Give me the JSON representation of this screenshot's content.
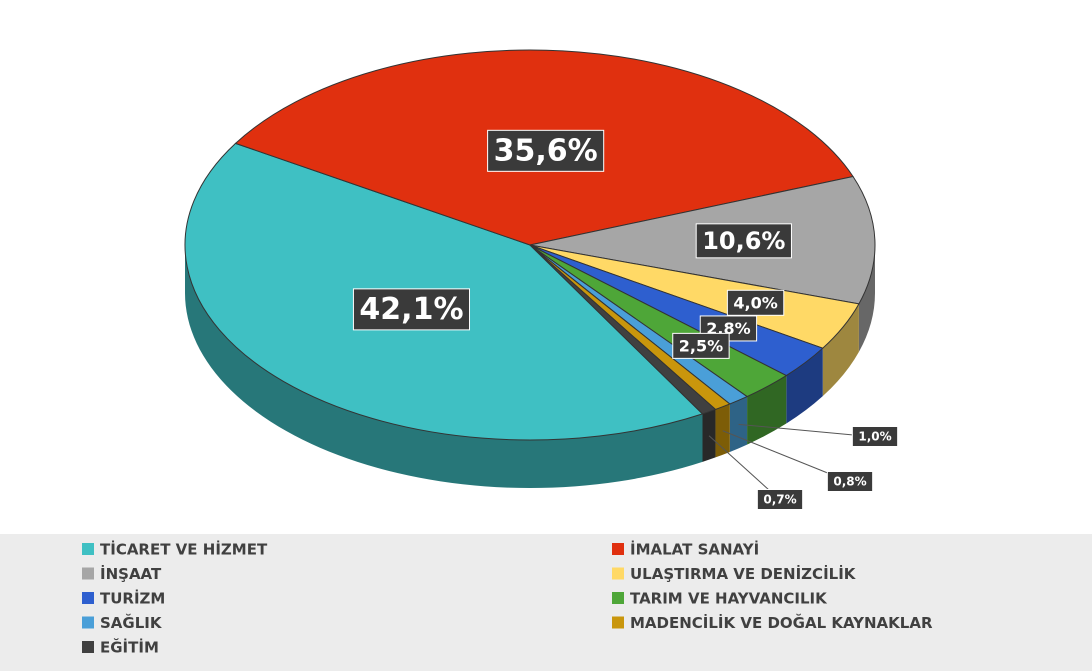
{
  "chart_data": {
    "type": "pie",
    "categories": [
      "TİCARET VE HİZMET",
      "İMALAT SANAYİ",
      "İNŞAAT",
      "ULAŞTIRMA VE DENİZCİLİK",
      "TURİZM",
      "TARIM VE HAYVANCILIK",
      "SAĞLIK",
      "MADENCİLİK VE DOĞAL KAYNAKLAR",
      "EĞİTİM"
    ],
    "values": [
      42.1,
      35.6,
      10.6,
      4.0,
      2.8,
      2.5,
      1.0,
      0.8,
      0.7
    ],
    "value_labels": [
      "42,1%",
      "35,6%",
      "10,6%",
      "4,0%",
      "2,8%",
      "2,5%",
      "1,0%",
      "0,8%",
      "0,7%"
    ],
    "colors": [
      "#3fc0c3",
      "#e0300f",
      "#a6a6a6",
      "#ffd966",
      "#2e5fcf",
      "#4ea638",
      "#4a9fd8",
      "#c9960c",
      "#404040"
    ],
    "legend": "bottom"
  }
}
